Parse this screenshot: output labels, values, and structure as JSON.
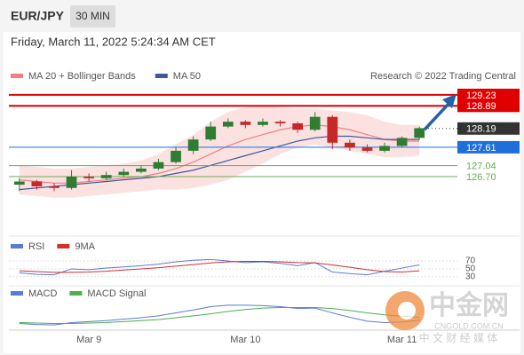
{
  "header": {
    "symbol": "EUR/JPY",
    "timeframe": "30 MIN",
    "timestamp": "Friday, March 11, 2022 5:24:34 AM CET"
  },
  "watermark": {
    "brand": "中金网",
    "site": "CNGOLD.COM.CN",
    "tagline": "中 文 财 经 媒 体"
  },
  "chart_data": [
    {
      "type": "candlestick",
      "credit": "Research © 2022 Trading Central",
      "categories": [
        null,
        null,
        null,
        null,
        "Mar 9",
        null,
        null,
        null,
        null,
        null,
        null,
        null,
        null,
        "Mar 10",
        null,
        null,
        null,
        null,
        null,
        null,
        null,
        null,
        "Mar 11",
        null
      ],
      "up_color": "#2e7d32",
      "down_color": "#c62828",
      "ohlc": [
        [
          126.45,
          126.65,
          126.25,
          126.55
        ],
        [
          126.55,
          126.6,
          126.3,
          126.4
        ],
        [
          126.4,
          126.5,
          126.25,
          126.35
        ],
        [
          126.35,
          126.9,
          126.3,
          126.7
        ],
        [
          126.7,
          126.8,
          126.55,
          126.65
        ],
        [
          126.65,
          126.85,
          126.6,
          126.75
        ],
        [
          126.75,
          126.95,
          126.7,
          126.85
        ],
        [
          126.85,
          127.05,
          126.8,
          126.95
        ],
        [
          126.95,
          127.25,
          126.9,
          127.15
        ],
        [
          127.15,
          127.6,
          127.1,
          127.5
        ],
        [
          127.5,
          127.95,
          127.4,
          127.85
        ],
        [
          127.85,
          128.4,
          127.8,
          128.25
        ],
        [
          128.25,
          128.5,
          128.2,
          128.4
        ],
        [
          128.4,
          128.45,
          128.2,
          128.3
        ],
        [
          128.3,
          128.5,
          128.25,
          128.4
        ],
        [
          128.4,
          128.45,
          128.25,
          128.35
        ],
        [
          128.35,
          128.4,
          128.05,
          128.15
        ],
        [
          128.15,
          128.7,
          128.1,
          128.55
        ],
        [
          128.55,
          128.6,
          127.55,
          127.75
        ],
        [
          127.75,
          127.85,
          127.5,
          127.6
        ],
        [
          127.6,
          127.7,
          127.45,
          127.5
        ],
        [
          127.5,
          127.75,
          127.45,
          127.65
        ],
        [
          127.65,
          127.95,
          127.6,
          127.9
        ],
        [
          127.9,
          128.25,
          127.85,
          128.2
        ]
      ],
      "series": [
        {
          "name": "MA 20 + Bollinger Bands",
          "color": "#f08080",
          "band_color": "#fbd9d9",
          "values": [
            126.6,
            126.55,
            126.5,
            126.5,
            126.55,
            126.6,
            126.65,
            126.7,
            126.8,
            126.95,
            127.15,
            127.4,
            127.65,
            127.85,
            128.0,
            128.15,
            128.25,
            128.3,
            128.25,
            128.15,
            128.0,
            127.85,
            127.8,
            127.8
          ],
          "upper": [
            127.05,
            127.0,
            126.95,
            126.95,
            127.0,
            127.05,
            127.1,
            127.2,
            127.4,
            127.7,
            128.0,
            128.4,
            128.7,
            128.85,
            128.9,
            128.85,
            128.8,
            128.8,
            128.75,
            128.7,
            128.6,
            128.4,
            128.3,
            128.3
          ],
          "lower": [
            126.15,
            126.1,
            126.05,
            126.05,
            126.1,
            126.15,
            126.2,
            126.25,
            126.3,
            126.3,
            126.35,
            126.45,
            126.6,
            126.85,
            127.1,
            127.4,
            127.6,
            127.7,
            127.6,
            127.5,
            127.4,
            127.3,
            127.3,
            127.35
          ]
        },
        {
          "name": "MA 50",
          "color": "#3c5a9a",
          "values": [
            126.3,
            126.35,
            126.4,
            126.45,
            126.5,
            126.55,
            126.6,
            126.65,
            126.7,
            126.8,
            126.9,
            127.05,
            127.2,
            127.35,
            127.5,
            127.65,
            127.8,
            127.9,
            127.95,
            127.95,
            127.9,
            127.85,
            127.85,
            127.85
          ]
        }
      ],
      "levels": [
        {
          "value": 129.23,
          "color": "#e00000",
          "boxed": true,
          "style": "solid"
        },
        {
          "value": 128.89,
          "color": "#e00000",
          "boxed": true,
          "style": "solid"
        },
        {
          "value": 128.19,
          "color": "#333333",
          "boxed": true,
          "style": "dotted"
        },
        {
          "value": 127.61,
          "color": "#1e6fd9",
          "boxed": true,
          "style": "solid"
        },
        {
          "value": 127.04,
          "color": "#6aaa5a",
          "boxed": false,
          "style": "solid"
        },
        {
          "value": {
            "value": 126.7,
            "label": "126.70"
          },
          "color": "#6aaa5a",
          "boxed": false,
          "style": "solid"
        }
      ],
      "ylim": [
        125.3,
        129.42
      ]
    },
    {
      "type": "line",
      "series": [
        {
          "name": "RSI",
          "color": "#5b7bd5",
          "values": [
            40,
            36,
            35,
            50,
            48,
            52,
            55,
            58,
            62,
            68,
            72,
            74,
            70,
            66,
            68,
            64,
            58,
            66,
            42,
            38,
            35,
            44,
            52,
            60
          ]
        },
        {
          "name": "9MA",
          "color": "#d32f2f",
          "values": [
            45,
            43,
            41,
            41,
            42,
            44,
            47,
            50,
            53,
            57,
            61,
            65,
            68,
            69,
            69,
            68,
            66,
            65,
            60,
            54,
            48,
            43,
            42,
            45
          ]
        }
      ],
      "ylim": [
        16,
        86
      ],
      "yticks": [
        70,
        50,
        30
      ]
    },
    {
      "type": "line",
      "series": [
        {
          "name": "MACD",
          "color": "#5b7bd5",
          "values": [
            -0.1,
            -0.12,
            -0.13,
            -0.08,
            -0.06,
            -0.04,
            -0.01,
            0.02,
            0.06,
            0.12,
            0.18,
            0.25,
            0.28,
            0.28,
            0.27,
            0.25,
            0.21,
            0.22,
            0.12,
            0.03,
            -0.05,
            -0.08,
            -0.07,
            -0.03
          ]
        },
        {
          "name": "MACD Signal",
          "color": "#4caf50",
          "values": [
            -0.08,
            -0.09,
            -0.1,
            -0.1,
            -0.09,
            -0.08,
            -0.06,
            -0.04,
            -0.02,
            0.02,
            0.06,
            0.1,
            0.15,
            0.19,
            0.22,
            0.23,
            0.23,
            0.23,
            0.21,
            0.17,
            0.12,
            0.08,
            0.05,
            0.03
          ]
        }
      ],
      "ylim": [
        -0.2,
        0.35
      ]
    }
  ]
}
